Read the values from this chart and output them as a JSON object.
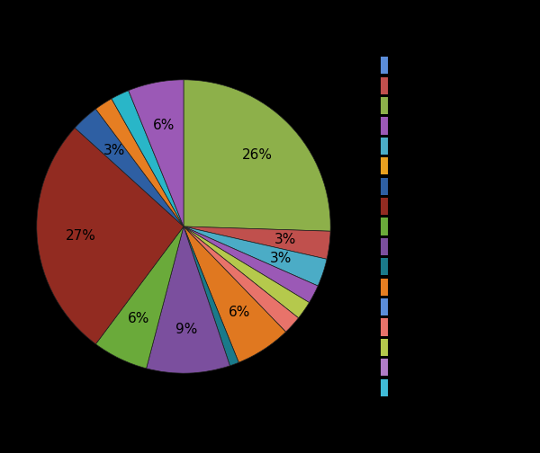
{
  "values": [
    25,
    3,
    3,
    2,
    2,
    2,
    6,
    1,
    9,
    6,
    26,
    3,
    2,
    2,
    6
  ],
  "pie_colors": [
    "#8db04a",
    "#c0504d",
    "#4bacc6",
    "#9b59b6",
    "#b5c94c",
    "#e8736a",
    "#e07820",
    "#1a7a8a",
    "#7b4f9e",
    "#6aaa3a",
    "#922b21",
    "#2e5fa3",
    "#e67e22",
    "#29b6c8",
    "#9b59b6"
  ],
  "legend_colors": [
    "#5b8dd9",
    "#c0504d",
    "#8db04a",
    "#9b59b6",
    "#4bacc6",
    "#e8a020",
    "#2e5fa3",
    "#922b21",
    "#6aaa3a",
    "#7b4f9e",
    "#1a7a8a",
    "#e67e22",
    "#5b8dd9",
    "#e8736a",
    "#b5c94c",
    "#b07cc6",
    "#40bcd8"
  ],
  "background_color": "#000000",
  "startangle": 90,
  "pct_fontsize": 11,
  "pct_min_display": 3
}
